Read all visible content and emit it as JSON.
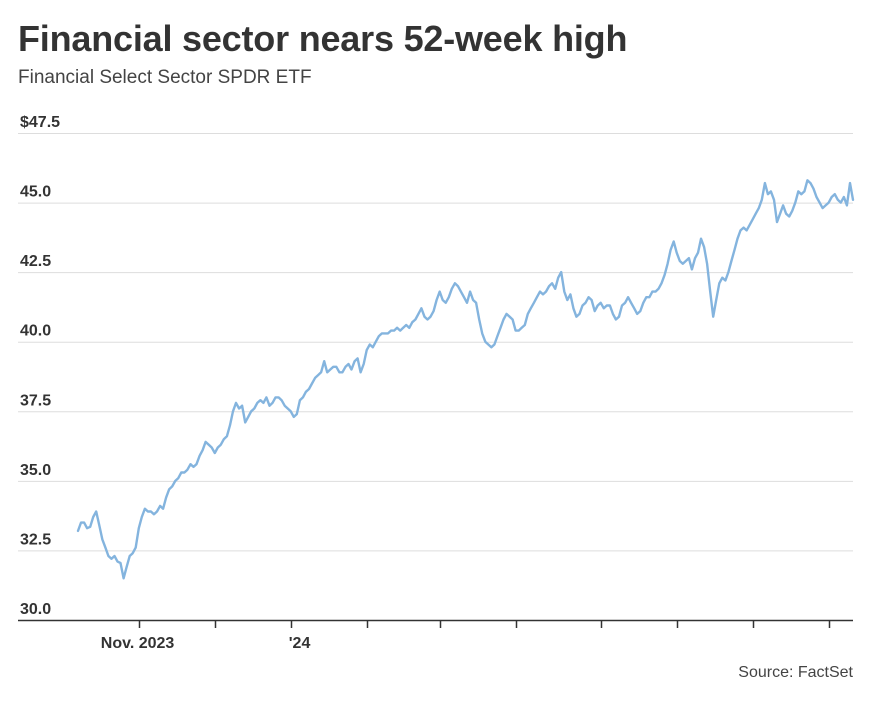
{
  "header": {
    "title": "Financial sector nears 52-week high",
    "subtitle": "Financial Select Sector SPDR ETF"
  },
  "footer": {
    "source": "Source: FactSet"
  },
  "colors": {
    "line": "#84b4de",
    "grid": "#dddddd",
    "axis": "#333333",
    "text": "#333333"
  },
  "chart_data": {
    "type": "line",
    "title": "Financial sector nears 52-week high",
    "subtitle": "Financial Select Sector SPDR ETF",
    "xlabel": "",
    "ylabel": "",
    "ylim": [
      30.0,
      47.5
    ],
    "yticks": [
      30.0,
      32.5,
      35.0,
      37.5,
      40.0,
      42.5,
      45.0,
      47.5
    ],
    "ytick_labels": [
      "30.0",
      "32.5",
      "35.0",
      "37.5",
      "40.0",
      "42.5",
      "45.0",
      "$47.5"
    ],
    "x_labels": [
      {
        "label": "Nov. 2023",
        "index": 20
      },
      {
        "label": "'24",
        "index": 70
      }
    ],
    "month_ticks": [
      20,
      45,
      70,
      95,
      119,
      144,
      172,
      197,
      222,
      247,
      274,
      299
    ],
    "series": [
      {
        "name": "Financial Select Sector SPDR ETF",
        "values": [
          33.2,
          33.5,
          33.5,
          33.3,
          33.35,
          33.7,
          33.9,
          33.4,
          32.9,
          32.6,
          32.3,
          32.2,
          32.3,
          32.1,
          32.05,
          31.5,
          31.9,
          32.3,
          32.4,
          32.6,
          33.3,
          33.7,
          34.0,
          33.9,
          33.9,
          33.8,
          33.9,
          34.1,
          34.0,
          34.4,
          34.7,
          34.8,
          35.0,
          35.1,
          35.3,
          35.3,
          35.4,
          35.6,
          35.5,
          35.6,
          35.9,
          36.1,
          36.4,
          36.3,
          36.2,
          36.0,
          36.2,
          36.3,
          36.5,
          36.6,
          37.0,
          37.5,
          37.8,
          37.6,
          37.7,
          37.1,
          37.3,
          37.5,
          37.6,
          37.8,
          37.9,
          37.8,
          38.0,
          37.7,
          37.8,
          38.0,
          38.0,
          37.9,
          37.7,
          37.6,
          37.5,
          37.3,
          37.4,
          37.9,
          38.0,
          38.2,
          38.3,
          38.5,
          38.7,
          38.8,
          38.9,
          39.3,
          38.9,
          39.0,
          39.1,
          39.1,
          38.9,
          38.9,
          39.1,
          39.2,
          39.0,
          39.3,
          39.4,
          38.9,
          39.2,
          39.7,
          39.9,
          39.8,
          40.0,
          40.2,
          40.3,
          40.3,
          40.3,
          40.4,
          40.4,
          40.5,
          40.4,
          40.5,
          40.6,
          40.5,
          40.7,
          40.8,
          41.0,
          41.2,
          40.9,
          40.8,
          40.9,
          41.1,
          41.5,
          41.8,
          41.5,
          41.4,
          41.6,
          41.9,
          42.1,
          42.0,
          41.8,
          41.6,
          41.4,
          41.8,
          41.5,
          41.4,
          40.8,
          40.3,
          40.0,
          39.9,
          39.8,
          39.9,
          40.2,
          40.5,
          40.8,
          41.0,
          40.9,
          40.8,
          40.4,
          40.4,
          40.5,
          40.6,
          41.0,
          41.2,
          41.4,
          41.6,
          41.8,
          41.7,
          41.8,
          42.0,
          42.1,
          41.9,
          42.3,
          42.5,
          41.8,
          41.5,
          41.7,
          41.2,
          40.9,
          41.0,
          41.3,
          41.4,
          41.6,
          41.5,
          41.1,
          41.3,
          41.4,
          41.2,
          41.3,
          41.3,
          41.0,
          40.8,
          40.9,
          41.3,
          41.4,
          41.6,
          41.4,
          41.2,
          41.0,
          41.1,
          41.4,
          41.6,
          41.6,
          41.8,
          41.8,
          41.9,
          42.1,
          42.4,
          42.8,
          43.3,
          43.6,
          43.2,
          42.9,
          42.8,
          42.9,
          43.0,
          42.6,
          43.0,
          43.2,
          43.7,
          43.4,
          42.8,
          41.8,
          40.9,
          41.5,
          42.1,
          42.3,
          42.2,
          42.5,
          42.9,
          43.3,
          43.7,
          44.0,
          44.1,
          44.0,
          44.2,
          44.4,
          44.6,
          44.8,
          45.1,
          45.7,
          45.3,
          45.4,
          45.1,
          44.3,
          44.6,
          44.9,
          44.6,
          44.5,
          44.7,
          45.0,
          45.4,
          45.3,
          45.4,
          45.8,
          45.7,
          45.5,
          45.2,
          45.0,
          44.8,
          44.9,
          45.0,
          45.2,
          45.3,
          45.1,
          45.0,
          45.2,
          44.9,
          45.7,
          45.1
        ]
      }
    ]
  }
}
